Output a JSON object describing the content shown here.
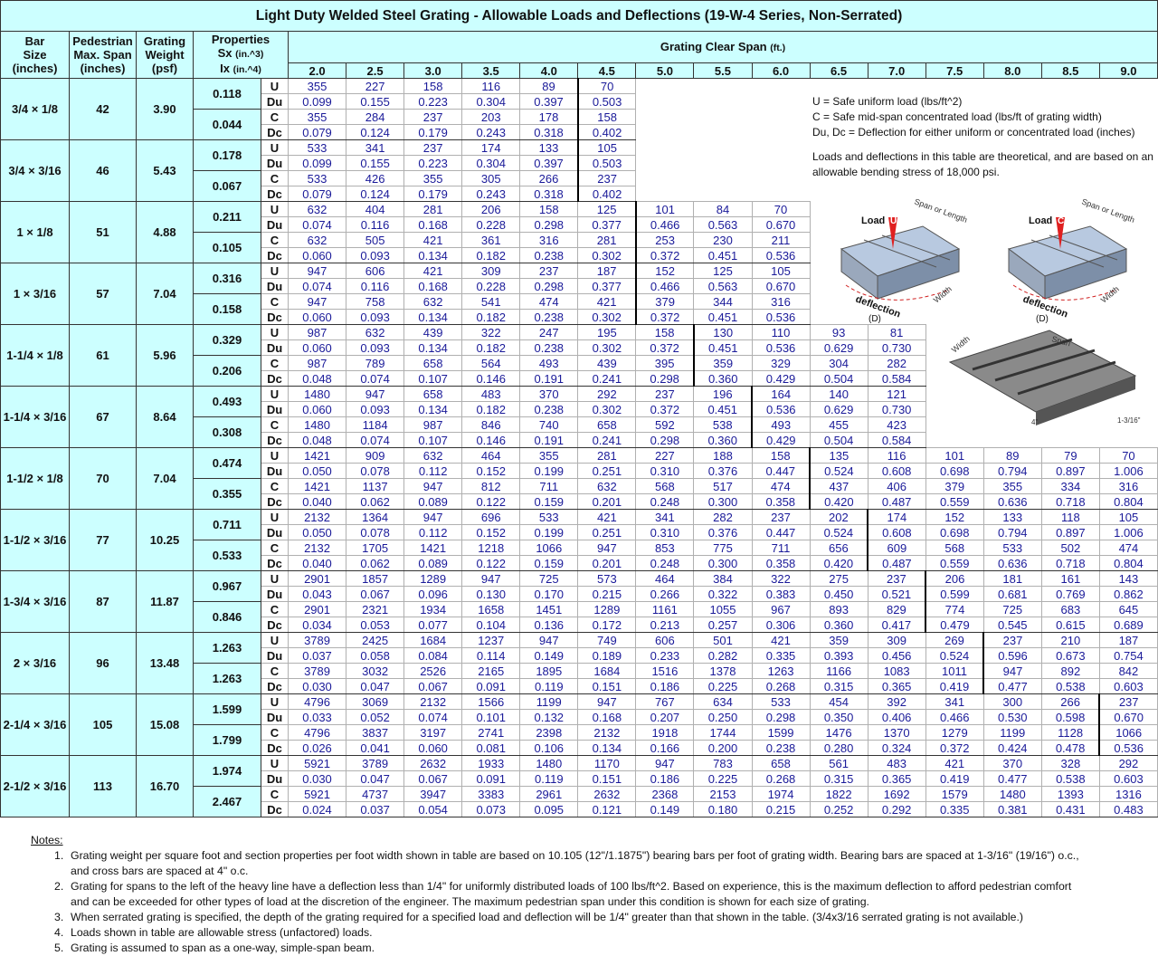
{
  "title": "Light Duty Welded Steel Grating - Allowable Loads and Deflections (19-W-4 Series, Non-Serrated)",
  "header": {
    "bar": "Bar",
    "size": "Size",
    "bar_unit": "(inches)",
    "pedestrian": "Pedestrian",
    "max_span": "Max. Span",
    "ped_unit": "(inches)",
    "grating": "Grating",
    "weight": "Weight",
    "weight_unit": "(psf)",
    "properties": "Properties",
    "sx": "Sx",
    "sx_unit": "(in.^3)",
    "ix": "Ix",
    "ix_unit": "(in.^4)",
    "clear_span": "Grating Clear Span",
    "clear_span_unit": "(ft.)"
  },
  "spans": [
    "2.0",
    "2.5",
    "3.0",
    "3.5",
    "4.0",
    "4.5",
    "5.0",
    "5.5",
    "6.0",
    "6.5",
    "7.0",
    "7.5",
    "8.0",
    "8.5",
    "9.0"
  ],
  "load_labels": [
    "U",
    "Du",
    "C",
    "Dc"
  ],
  "rows": [
    {
      "bar_size": "3/4 × 1/8",
      "pedestrian_span": "42",
      "weight": "3.90",
      "sx": "0.118",
      "ix": "0.044",
      "U": [
        "355",
        "227",
        "158",
        "116",
        "89",
        "70"
      ],
      "Du": [
        "0.099",
        "0.155",
        "0.223",
        "0.304",
        "0.397",
        "0.503"
      ],
      "C": [
        "355",
        "284",
        "237",
        "203",
        "178",
        "158"
      ],
      "Dc": [
        "0.079",
        "0.124",
        "0.179",
        "0.243",
        "0.318",
        "0.402"
      ]
    },
    {
      "bar_size": "3/4 × 3/16",
      "pedestrian_span": "46",
      "weight": "5.43",
      "sx": "0.178",
      "ix": "0.067",
      "U": [
        "533",
        "341",
        "237",
        "174",
        "133",
        "105"
      ],
      "Du": [
        "0.099",
        "0.155",
        "0.223",
        "0.304",
        "0.397",
        "0.503"
      ],
      "C": [
        "533",
        "426",
        "355",
        "305",
        "266",
        "237"
      ],
      "Dc": [
        "0.079",
        "0.124",
        "0.179",
        "0.243",
        "0.318",
        "0.402"
      ]
    },
    {
      "bar_size": "1 × 1/8",
      "pedestrian_span": "51",
      "weight": "4.88",
      "sx": "0.211",
      "ix": "0.105",
      "U": [
        "632",
        "404",
        "281",
        "206",
        "158",
        "125",
        "101",
        "84",
        "70"
      ],
      "Du": [
        "0.074",
        "0.116",
        "0.168",
        "0.228",
        "0.298",
        "0.377",
        "0.466",
        "0.563",
        "0.670"
      ],
      "C": [
        "632",
        "505",
        "421",
        "361",
        "316",
        "281",
        "253",
        "230",
        "211"
      ],
      "Dc": [
        "0.060",
        "0.093",
        "0.134",
        "0.182",
        "0.238",
        "0.302",
        "0.372",
        "0.451",
        "0.536"
      ]
    },
    {
      "bar_size": "1 × 3/16",
      "pedestrian_span": "57",
      "weight": "7.04",
      "sx": "0.316",
      "ix": "0.158",
      "U": [
        "947",
        "606",
        "421",
        "309",
        "237",
        "187",
        "152",
        "125",
        "105"
      ],
      "Du": [
        "0.074",
        "0.116",
        "0.168",
        "0.228",
        "0.298",
        "0.377",
        "0.466",
        "0.563",
        "0.670"
      ],
      "C": [
        "947",
        "758",
        "632",
        "541",
        "474",
        "421",
        "379",
        "344",
        "316"
      ],
      "Dc": [
        "0.060",
        "0.093",
        "0.134",
        "0.182",
        "0.238",
        "0.302",
        "0.372",
        "0.451",
        "0.536"
      ]
    },
    {
      "bar_size": "1-1/4 × 1/8",
      "pedestrian_span": "61",
      "weight": "5.96",
      "sx": "0.329",
      "ix": "0.206",
      "U": [
        "987",
        "632",
        "439",
        "322",
        "247",
        "195",
        "158",
        "130",
        "110",
        "93",
        "81"
      ],
      "Du": [
        "0.060",
        "0.093",
        "0.134",
        "0.182",
        "0.238",
        "0.302",
        "0.372",
        "0.451",
        "0.536",
        "0.629",
        "0.730"
      ],
      "C": [
        "987",
        "789",
        "658",
        "564",
        "493",
        "439",
        "395",
        "359",
        "329",
        "304",
        "282"
      ],
      "Dc": [
        "0.048",
        "0.074",
        "0.107",
        "0.146",
        "0.191",
        "0.241",
        "0.298",
        "0.360",
        "0.429",
        "0.504",
        "0.584"
      ]
    },
    {
      "bar_size": "1-1/4 × 3/16",
      "pedestrian_span": "67",
      "weight": "8.64",
      "sx": "0.493",
      "ix": "0.308",
      "U": [
        "1480",
        "947",
        "658",
        "483",
        "370",
        "292",
        "237",
        "196",
        "164",
        "140",
        "121"
      ],
      "Du": [
        "0.060",
        "0.093",
        "0.134",
        "0.182",
        "0.238",
        "0.302",
        "0.372",
        "0.451",
        "0.536",
        "0.629",
        "0.730"
      ],
      "C": [
        "1480",
        "1184",
        "987",
        "846",
        "740",
        "658",
        "592",
        "538",
        "493",
        "455",
        "423"
      ],
      "Dc": [
        "0.048",
        "0.074",
        "0.107",
        "0.146",
        "0.191",
        "0.241",
        "0.298",
        "0.360",
        "0.429",
        "0.504",
        "0.584"
      ]
    },
    {
      "bar_size": "1-1/2 × 1/8",
      "pedestrian_span": "70",
      "weight": "7.04",
      "sx": "0.474",
      "ix": "0.355",
      "U": [
        "1421",
        "909",
        "632",
        "464",
        "355",
        "281",
        "227",
        "188",
        "158",
        "135",
        "116",
        "101",
        "89",
        "79",
        "70"
      ],
      "Du": [
        "0.050",
        "0.078",
        "0.112",
        "0.152",
        "0.199",
        "0.251",
        "0.310",
        "0.376",
        "0.447",
        "0.524",
        "0.608",
        "0.698",
        "0.794",
        "0.897",
        "1.006"
      ],
      "C": [
        "1421",
        "1137",
        "947",
        "812",
        "711",
        "632",
        "568",
        "517",
        "474",
        "437",
        "406",
        "379",
        "355",
        "334",
        "316"
      ],
      "Dc": [
        "0.040",
        "0.062",
        "0.089",
        "0.122",
        "0.159",
        "0.201",
        "0.248",
        "0.300",
        "0.358",
        "0.420",
        "0.487",
        "0.559",
        "0.636",
        "0.718",
        "0.804"
      ]
    },
    {
      "bar_size": "1-1/2 × 3/16",
      "pedestrian_span": "77",
      "weight": "10.25",
      "sx": "0.711",
      "ix": "0.533",
      "U": [
        "2132",
        "1364",
        "947",
        "696",
        "533",
        "421",
        "341",
        "282",
        "237",
        "202",
        "174",
        "152",
        "133",
        "118",
        "105"
      ],
      "Du": [
        "0.050",
        "0.078",
        "0.112",
        "0.152",
        "0.199",
        "0.251",
        "0.310",
        "0.376",
        "0.447",
        "0.524",
        "0.608",
        "0.698",
        "0.794",
        "0.897",
        "1.006"
      ],
      "C": [
        "2132",
        "1705",
        "1421",
        "1218",
        "1066",
        "947",
        "853",
        "775",
        "711",
        "656",
        "609",
        "568",
        "533",
        "502",
        "474"
      ],
      "Dc": [
        "0.040",
        "0.062",
        "0.089",
        "0.122",
        "0.159",
        "0.201",
        "0.248",
        "0.300",
        "0.358",
        "0.420",
        "0.487",
        "0.559",
        "0.636",
        "0.718",
        "0.804"
      ]
    },
    {
      "bar_size": "1-3/4 × 3/16",
      "pedestrian_span": "87",
      "weight": "11.87",
      "sx": "0.967",
      "ix": "0.846",
      "U": [
        "2901",
        "1857",
        "1289",
        "947",
        "725",
        "573",
        "464",
        "384",
        "322",
        "275",
        "237",
        "206",
        "181",
        "161",
        "143"
      ],
      "Du": [
        "0.043",
        "0.067",
        "0.096",
        "0.130",
        "0.170",
        "0.215",
        "0.266",
        "0.322",
        "0.383",
        "0.450",
        "0.521",
        "0.599",
        "0.681",
        "0.769",
        "0.862"
      ],
      "C": [
        "2901",
        "2321",
        "1934",
        "1658",
        "1451",
        "1289",
        "1161",
        "1055",
        "967",
        "893",
        "829",
        "774",
        "725",
        "683",
        "645"
      ],
      "Dc": [
        "0.034",
        "0.053",
        "0.077",
        "0.104",
        "0.136",
        "0.172",
        "0.213",
        "0.257",
        "0.306",
        "0.360",
        "0.417",
        "0.479",
        "0.545",
        "0.615",
        "0.689"
      ]
    },
    {
      "bar_size": "2 × 3/16",
      "pedestrian_span": "96",
      "weight": "13.48",
      "sx": "1.263",
      "ix": "1.263",
      "U": [
        "3789",
        "2425",
        "1684",
        "1237",
        "947",
        "749",
        "606",
        "501",
        "421",
        "359",
        "309",
        "269",
        "237",
        "210",
        "187"
      ],
      "Du": [
        "0.037",
        "0.058",
        "0.084",
        "0.114",
        "0.149",
        "0.189",
        "0.233",
        "0.282",
        "0.335",
        "0.393",
        "0.456",
        "0.524",
        "0.596",
        "0.673",
        "0.754"
      ],
      "C": [
        "3789",
        "3032",
        "2526",
        "2165",
        "1895",
        "1684",
        "1516",
        "1378",
        "1263",
        "1166",
        "1083",
        "1011",
        "947",
        "892",
        "842"
      ],
      "Dc": [
        "0.030",
        "0.047",
        "0.067",
        "0.091",
        "0.119",
        "0.151",
        "0.186",
        "0.225",
        "0.268",
        "0.315",
        "0.365",
        "0.419",
        "0.477",
        "0.538",
        "0.603"
      ]
    },
    {
      "bar_size": "2-1/4 × 3/16",
      "pedestrian_span": "105",
      "weight": "15.08",
      "sx": "1.599",
      "ix": "1.799",
      "U": [
        "4796",
        "3069",
        "2132",
        "1566",
        "1199",
        "947",
        "767",
        "634",
        "533",
        "454",
        "392",
        "341",
        "300",
        "266",
        "237"
      ],
      "Du": [
        "0.033",
        "0.052",
        "0.074",
        "0.101",
        "0.132",
        "0.168",
        "0.207",
        "0.250",
        "0.298",
        "0.350",
        "0.406",
        "0.466",
        "0.530",
        "0.598",
        "0.670"
      ],
      "C": [
        "4796",
        "3837",
        "3197",
        "2741",
        "2398",
        "2132",
        "1918",
        "1744",
        "1599",
        "1476",
        "1370",
        "1279",
        "1199",
        "1128",
        "1066"
      ],
      "Dc": [
        "0.026",
        "0.041",
        "0.060",
        "0.081",
        "0.106",
        "0.134",
        "0.166",
        "0.200",
        "0.238",
        "0.280",
        "0.324",
        "0.372",
        "0.424",
        "0.478",
        "0.536"
      ]
    },
    {
      "bar_size": "2-1/2 × 3/16",
      "pedestrian_span": "113",
      "weight": "16.70",
      "sx": "1.974",
      "ix": "2.467",
      "U": [
        "5921",
        "3789",
        "2632",
        "1933",
        "1480",
        "1170",
        "947",
        "783",
        "658",
        "561",
        "483",
        "421",
        "370",
        "328",
        "292"
      ],
      "Du": [
        "0.030",
        "0.047",
        "0.067",
        "0.091",
        "0.119",
        "0.151",
        "0.186",
        "0.225",
        "0.268",
        "0.315",
        "0.365",
        "0.419",
        "0.477",
        "0.538",
        "0.603"
      ],
      "C": [
        "5921",
        "4737",
        "3947",
        "3383",
        "2961",
        "2632",
        "2368",
        "2153",
        "1974",
        "1822",
        "1692",
        "1579",
        "1480",
        "1393",
        "1316"
      ],
      "Dc": [
        "0.024",
        "0.037",
        "0.054",
        "0.073",
        "0.095",
        "0.121",
        "0.149",
        "0.180",
        "0.215",
        "0.252",
        "0.292",
        "0.335",
        "0.381",
        "0.431",
        "0.483"
      ]
    }
  ],
  "legend": [
    "U = Safe uniform load (lbs/ft^2)",
    "C = Safe mid-span concentrated load (lbs/ft of grating width)",
    "Du, Dc = Deflection for either uniform or concentrated load (inches)"
  ],
  "theory_note": "Loads and deflections in this table are theoretical, and are based on an allowable bending stress of 18,000 psi.",
  "diagram": {
    "load": "Load",
    "u": "U",
    "c": "C",
    "span_or_length": "Span or Length",
    "width": "Width",
    "deflection": "deflection",
    "d": "(D)",
    "span": "Span",
    "spacing": "4\"",
    "bar_spacing": "1-3/16\""
  },
  "notes_title": "Notes:",
  "notes": [
    {
      "number": "1.",
      "lines": [
        "Grating weight per square foot and section properties per foot width shown in table are based on 10.105 (12\"/1.1875\") bearing bars per foot of grating width.  Bearing bars are spaced at 1-3/16\" (19/16\") o.c.,",
        "and cross bars are spaced at 4\" o.c."
      ]
    },
    {
      "number": "2.",
      "lines": [
        "Grating for spans to the left of the heavy line have a deflection less than 1/4\" for uniformly distributed loads of 100 lbs/ft^2.  Based on experience, this is the maximum deflection to afford pedestrian comfort",
        "and can be exceeded for other types of load at the discretion of the engineer.  The maximum pedestrian span under this condition is shown for each size of grating."
      ]
    },
    {
      "number": "3.",
      "lines": [
        "When serrated grating is specified, the depth of the grating required for a specified load and deflection will be 1/4\" greater than that shown in the table.  (3/4x3/16 serrated grating is not available.)"
      ]
    },
    {
      "number": "4.",
      "lines": [
        "Loads shown in table are allowable stress (unfactored) loads."
      ]
    },
    {
      "number": "5.",
      "lines": [
        "Grating is assumed to span as a one-way, simple-span beam."
      ]
    }
  ]
}
